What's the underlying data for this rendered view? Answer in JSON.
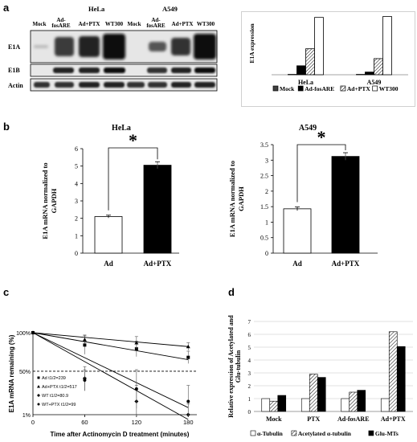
{
  "panels": {
    "a": "a",
    "b": "b",
    "c": "c",
    "d": "d"
  },
  "blot": {
    "cell_lines": [
      "HeLa",
      "A549"
    ],
    "lanes": [
      "Mock",
      "Ad-fosARE",
      "Ad+PTX",
      "WT300",
      "Mock",
      "Ad-fosARE",
      "Ad+PTX",
      "WT300"
    ],
    "rows": [
      "E1A",
      "E1B",
      "Actin"
    ]
  },
  "chart_data": [
    {
      "id": "a-bar",
      "type": "bar",
      "ylabel": "E1A expression",
      "categories": [
        "HeLa",
        "A549"
      ],
      "series": [
        {
          "name": "Mock",
          "values": [
            0.2,
            0.2
          ],
          "color": "#404040",
          "fill": "solid"
        },
        {
          "name": "Ad-fosARE",
          "values": [
            5,
            1.5
          ],
          "color": "#000000",
          "fill": "solid"
        },
        {
          "name": "Ad+PTX",
          "values": [
            14.5,
            9
          ],
          "color": "#ffffff",
          "fill": "hatch"
        },
        {
          "name": "WT300",
          "values": [
            32,
            32.5
          ],
          "color": "#ffffff",
          "fill": "open"
        }
      ],
      "ylim": [
        0,
        35
      ],
      "grid": false,
      "legend": "bottom"
    },
    {
      "id": "b-hela",
      "type": "bar",
      "title": "HeLa",
      "ylabel": "E1A mRNA normalized to GAPDH",
      "categories": [
        "Ad",
        "Ad+PTX"
      ],
      "values": [
        2.1,
        5.05
      ],
      "errors": [
        0.08,
        0.2
      ],
      "ylim": [
        0,
        6
      ],
      "yticks": [
        0,
        1,
        2,
        3,
        4,
        5,
        6
      ],
      "significance": "*"
    },
    {
      "id": "b-a549",
      "type": "bar",
      "title": "A549",
      "ylabel": "E1A mRNA normalized to GAPDH",
      "categories": [
        "Ad",
        "Ad+PTX"
      ],
      "values": [
        1.43,
        3.12
      ],
      "errors": [
        0.06,
        0.12
      ],
      "ylim": [
        0,
        3.5
      ],
      "yticks": [
        "0",
        "0.5",
        "1",
        "1.5",
        "2",
        "2.5",
        "3",
        "3.5"
      ],
      "significance": "*"
    },
    {
      "id": "c-decay",
      "type": "scatter",
      "xlabel": "Time after Actinomycin D treatment (minutes)",
      "ylabel": "E1A mRNA remaining (%)",
      "x_ticks": [
        0,
        60,
        120,
        180
      ],
      "y_ticks": [
        "100%",
        "50%",
        "1%"
      ],
      "xlim": [
        0,
        190
      ],
      "series": [
        {
          "name": "Ad t1/2=239",
          "marker": "square",
          "x": [
            0,
            60,
            120,
            180
          ],
          "y": [
            100,
            84,
            79,
            68
          ],
          "err": [
            0,
            12,
            10,
            8
          ],
          "fit": [
            100,
            65
          ]
        },
        {
          "name": "Ad+PTX t1/2=517",
          "marker": "triangle",
          "x": [
            0,
            60,
            120,
            180
          ],
          "y": [
            100,
            91,
            87,
            82
          ],
          "err": [
            0,
            6,
            8,
            5
          ],
          "fit": [
            100,
            82
          ]
        },
        {
          "name": "WT t1/2=80.9",
          "marker": "diamond",
          "x": [
            0,
            60,
            120,
            180
          ],
          "y": [
            100,
            42,
            16,
            1
          ],
          "err": [
            0,
            14,
            18,
            12
          ],
          "fit": [
            100,
            -2
          ]
        },
        {
          "name": "WT+PTX t1/2=99",
          "marker": "circle",
          "x": [
            0,
            60,
            120,
            180
          ],
          "y": [
            100,
            40,
            30,
            16
          ],
          "err": [
            0,
            12,
            22,
            18
          ],
          "fit": [
            100,
            9
          ]
        }
      ],
      "ref_line": 50
    },
    {
      "id": "d-bar",
      "type": "bar",
      "ylabel": "Relative expression of Acetylated and Glu-tubulin",
      "categories": [
        "Mock",
        "PTX",
        "Ad-fosARE",
        "Ad+PTX"
      ],
      "series": [
        {
          "name": "α-Tubulin",
          "values": [
            1,
            1,
            1,
            1
          ],
          "fill": "open"
        },
        {
          "name": "Acetylated α-tubulin",
          "values": [
            0.8,
            2.9,
            1.5,
            6.2
          ],
          "fill": "hatch"
        },
        {
          "name": "Glu-MTs",
          "values": [
            1.25,
            2.65,
            1.65,
            5.05
          ],
          "fill": "solid"
        }
      ],
      "ylim": [
        0,
        7
      ],
      "yticks": [
        0,
        1,
        2,
        3,
        4,
        5,
        6,
        7
      ],
      "grid": true,
      "legend": "bottom"
    }
  ]
}
